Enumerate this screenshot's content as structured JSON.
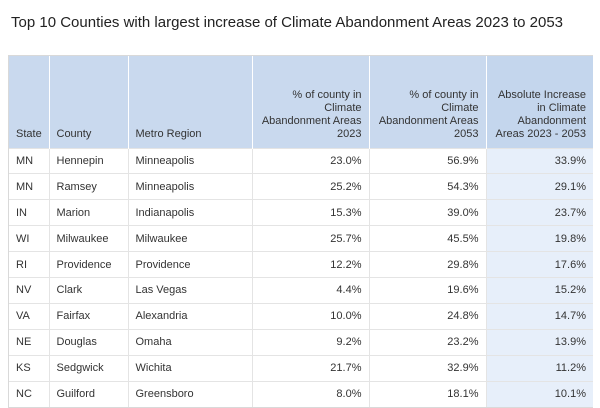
{
  "title": "Top 10 Counties with largest increase of Climate Abandonment Areas 2023 to 2053",
  "columns": {
    "state": "State",
    "county": "County",
    "metro": "Metro Region",
    "pct_2023": "% of county in Climate Abandonment Areas 2023",
    "pct_2053": "% of county in Climate Abandonment Areas 2053",
    "abs_increase": "Absolute Increase in Climate Abandonment Areas 2023 - 2053"
  },
  "rows": [
    {
      "state": "MN",
      "county": "Hennepin",
      "metro": "Minneapolis",
      "pct_2023": "23.0%",
      "pct_2053": "56.9%",
      "abs": "33.9%"
    },
    {
      "state": "MN",
      "county": "Ramsey",
      "metro": "Minneapolis",
      "pct_2023": "25.2%",
      "pct_2053": "54.3%",
      "abs": "29.1%"
    },
    {
      "state": "IN",
      "county": "Marion",
      "metro": "Indianapolis",
      "pct_2023": "15.3%",
      "pct_2053": "39.0%",
      "abs": "23.7%"
    },
    {
      "state": "WI",
      "county": "Milwaukee",
      "metro": "Milwaukee",
      "pct_2023": "25.7%",
      "pct_2053": "45.5%",
      "abs": "19.8%"
    },
    {
      "state": "RI",
      "county": "Providence",
      "metro": "Providence",
      "pct_2023": "12.2%",
      "pct_2053": "29.8%",
      "abs": "17.6%"
    },
    {
      "state": "NV",
      "county": "Clark",
      "metro": "Las Vegas",
      "pct_2023": "4.4%",
      "pct_2053": "19.6%",
      "abs": "15.2%"
    },
    {
      "state": "VA",
      "county": "Fairfax",
      "metro": "Alexandria",
      "pct_2023": "10.0%",
      "pct_2053": "24.8%",
      "abs": "14.7%"
    },
    {
      "state": "NE",
      "county": "Douglas",
      "metro": "Omaha",
      "pct_2023": "9.2%",
      "pct_2053": "23.2%",
      "abs": "13.9%"
    },
    {
      "state": "KS",
      "county": "Sedgwick",
      "metro": "Wichita",
      "pct_2023": "21.7%",
      "pct_2053": "32.9%",
      "abs": "11.2%"
    },
    {
      "state": "NC",
      "county": "Guilford",
      "metro": "Greensboro",
      "pct_2023": "8.0%",
      "pct_2053": "18.1%",
      "abs": "10.1%"
    }
  ]
}
